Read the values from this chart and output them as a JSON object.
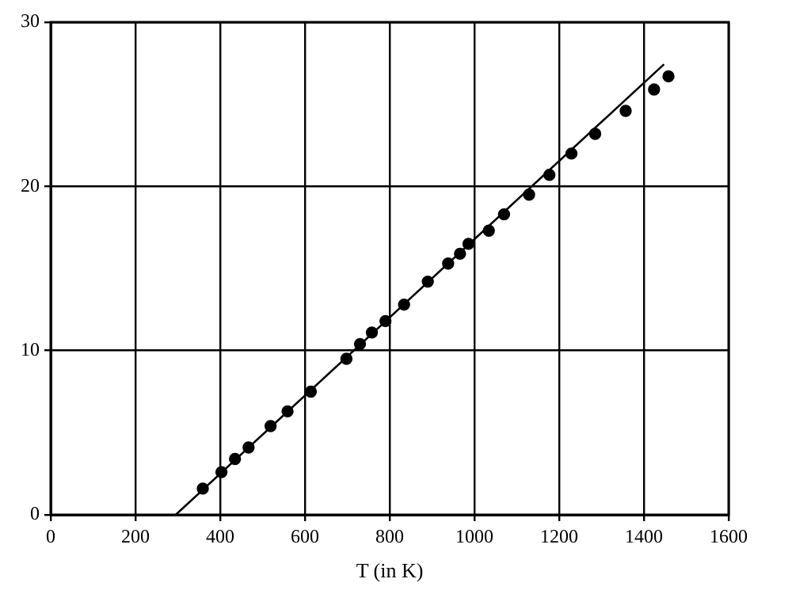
{
  "chart_data": {
    "type": "scatter",
    "xlabel": "T (in K)",
    "xlim": [
      0,
      1600
    ],
    "xticks": [
      0,
      200,
      400,
      600,
      800,
      1000,
      1200,
      1400,
      1600
    ],
    "ylim": [
      0,
      30
    ],
    "yticks": [
      0,
      10,
      20,
      30
    ],
    "grid": true,
    "legend": false,
    "marker": "circle",
    "series": [
      {
        "color": "#000000",
        "x": [
          359,
          403,
          435,
          467,
          519,
          559,
          614,
          698,
          730,
          758,
          790,
          834,
          890,
          938,
          966,
          986,
          1034,
          1070,
          1129,
          1177,
          1229,
          1285,
          1357,
          1424,
          1458
        ],
        "values": [
          1.6,
          2.6,
          3.4,
          4.1,
          5.4,
          6.3,
          7.5,
          9.5,
          10.4,
          11.1,
          11.8,
          12.8,
          14.2,
          15.3,
          15.9,
          16.5,
          17.3,
          18.3,
          19.5,
          20.7,
          22.0,
          23.2,
          24.6,
          25.9,
          26.7
        ]
      },
      {
        "type": "line",
        "color": "#000000",
        "marker": "none",
        "line_style": "solid",
        "x": [
          295,
          1446
        ],
        "values": [
          0,
          27.4
        ]
      }
    ]
  }
}
